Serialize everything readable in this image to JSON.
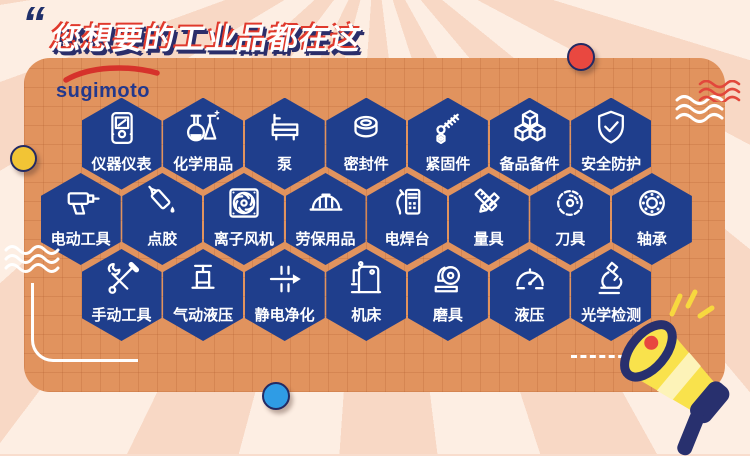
{
  "header": {
    "quote_mark": "“",
    "title": "您想要的工业品都在这"
  },
  "logo": {
    "text": "sugimoto"
  },
  "colors": {
    "card_orange": "#e1935e",
    "hex_navy": "#1f3e8c",
    "title_red": "#e0392c",
    "accent_yellow": "#f2c435",
    "accent_blue": "#2f9ce5",
    "accent_red": "#e94840"
  },
  "categories": {
    "rows": [
      {
        "items": [
          {
            "label": "仪器仪表",
            "icon": "meter-icon"
          },
          {
            "label": "化学用品",
            "icon": "chemistry-icon"
          },
          {
            "label": "泵",
            "icon": "pump-icon"
          },
          {
            "label": "密封件",
            "icon": "seal-icon"
          },
          {
            "label": "紧固件",
            "icon": "fastener-icon"
          },
          {
            "label": "备品备件",
            "icon": "cubes-icon"
          },
          {
            "label": "安全防护",
            "icon": "shield-icon"
          }
        ]
      },
      {
        "items": [
          {
            "label": "电动工具",
            "icon": "drill-icon"
          },
          {
            "label": "点胶",
            "icon": "glue-icon"
          },
          {
            "label": "离子风机",
            "icon": "fan-icon"
          },
          {
            "label": "劳保用品",
            "icon": "helmet-icon"
          },
          {
            "label": "电焊台",
            "icon": "welder-icon"
          },
          {
            "label": "量具",
            "icon": "ruler-icon"
          },
          {
            "label": "刀具",
            "icon": "sawblade-icon"
          },
          {
            "label": "轴承",
            "icon": "bearing-icon"
          }
        ]
      },
      {
        "items": [
          {
            "label": "手动工具",
            "icon": "tools-icon"
          },
          {
            "label": "气动液压",
            "icon": "valve-icon"
          },
          {
            "label": "静电净化",
            "icon": "airflow-icon"
          },
          {
            "label": "机床",
            "icon": "machine-icon"
          },
          {
            "label": "磨具",
            "icon": "grinder-icon"
          },
          {
            "label": "液压",
            "icon": "gauge-icon"
          },
          {
            "label": "光学检测",
            "icon": "microscope-icon"
          }
        ]
      }
    ]
  }
}
